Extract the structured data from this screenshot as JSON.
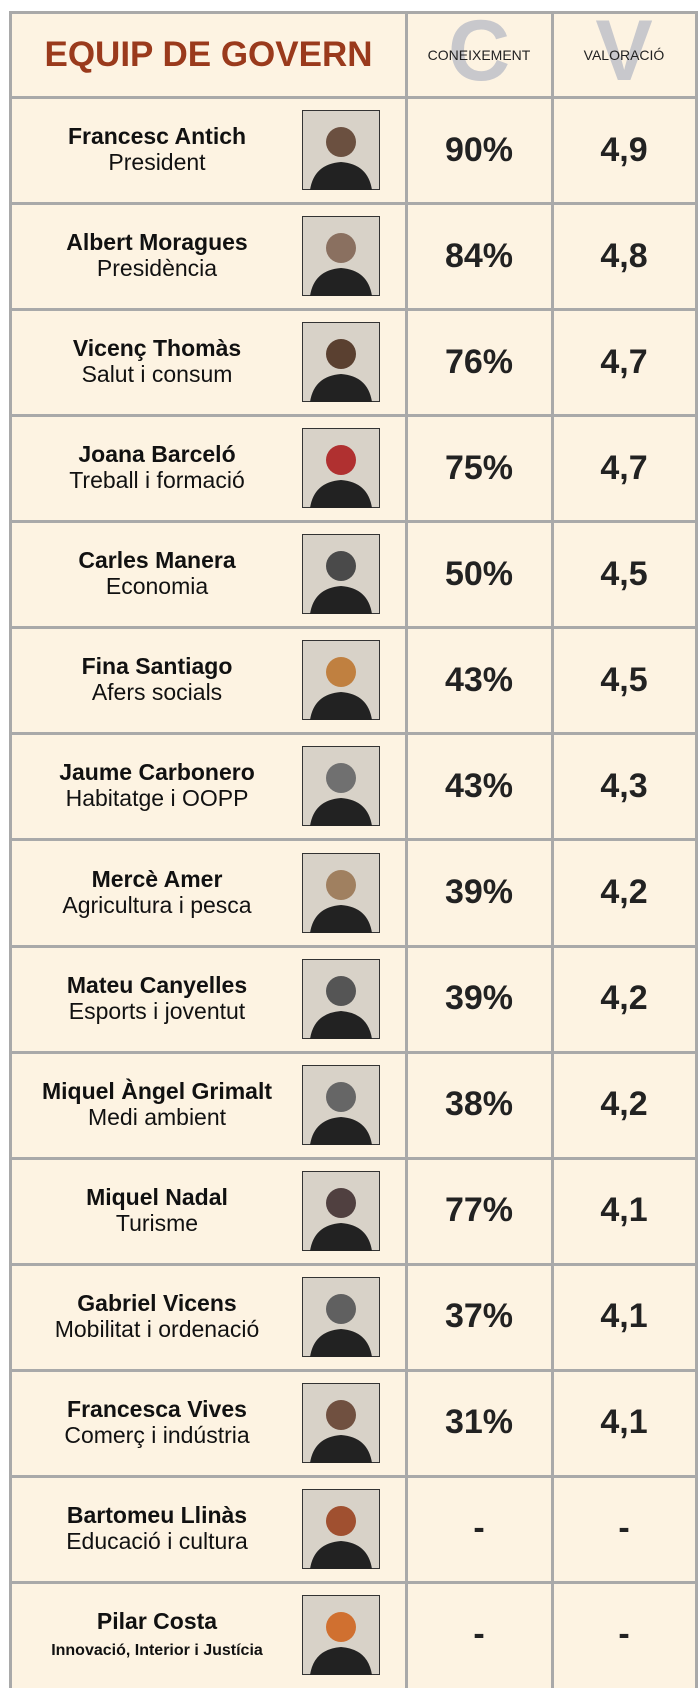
{
  "header": {
    "title": "EQUIP DE GOVERN",
    "columns": [
      {
        "letter": "C",
        "label": "CONEIXEMENT"
      },
      {
        "letter": "V",
        "label": "VALORACIÓ"
      }
    ]
  },
  "table": {
    "rows": [
      [
        "Francesc Antich",
        "President",
        "90%",
        "4,9"
      ],
      [
        "Albert Moragues",
        "Presidència",
        "84%",
        "4,8"
      ],
      [
        "Vicenç Thomàs",
        "Salut i consum",
        "76%",
        "4,7"
      ],
      [
        "Joana Barceló",
        "Treball i formació",
        "75%",
        "4,7"
      ],
      [
        "Carles Manera",
        "Economia",
        "50%",
        "4,5"
      ],
      [
        "Fina Santiago",
        "Afers socials",
        "43%",
        "4,5"
      ],
      [
        "Jaume Carbonero",
        "Habitatge i OOPP",
        "43%",
        "4,3"
      ],
      [
        "Mercè Amer",
        "Agricultura i pesca",
        "39%",
        "4,2"
      ],
      [
        "Mateu Canyelles",
        "Esports i joventut",
        "39%",
        "4,2"
      ],
      [
        "Miquel Àngel Grimalt",
        "Medi ambient",
        "38%",
        "4,2"
      ],
      [
        "Miquel Nadal",
        "Turisme",
        "77%",
        "4,1"
      ],
      [
        "Gabriel Vicens",
        "Mobilitat i ordenació",
        "37%",
        "4,1"
      ],
      [
        "Francesca Vives",
        "Comerç i indústria",
        "31%",
        "4,1"
      ],
      [
        "Bartomeu Llinàs",
        "Educació i cultura",
        "-",
        "-"
      ],
      [
        "Pilar Costa",
        "Innovació, Interior i Justícia",
        "-",
        "-"
      ]
    ]
  }
}
